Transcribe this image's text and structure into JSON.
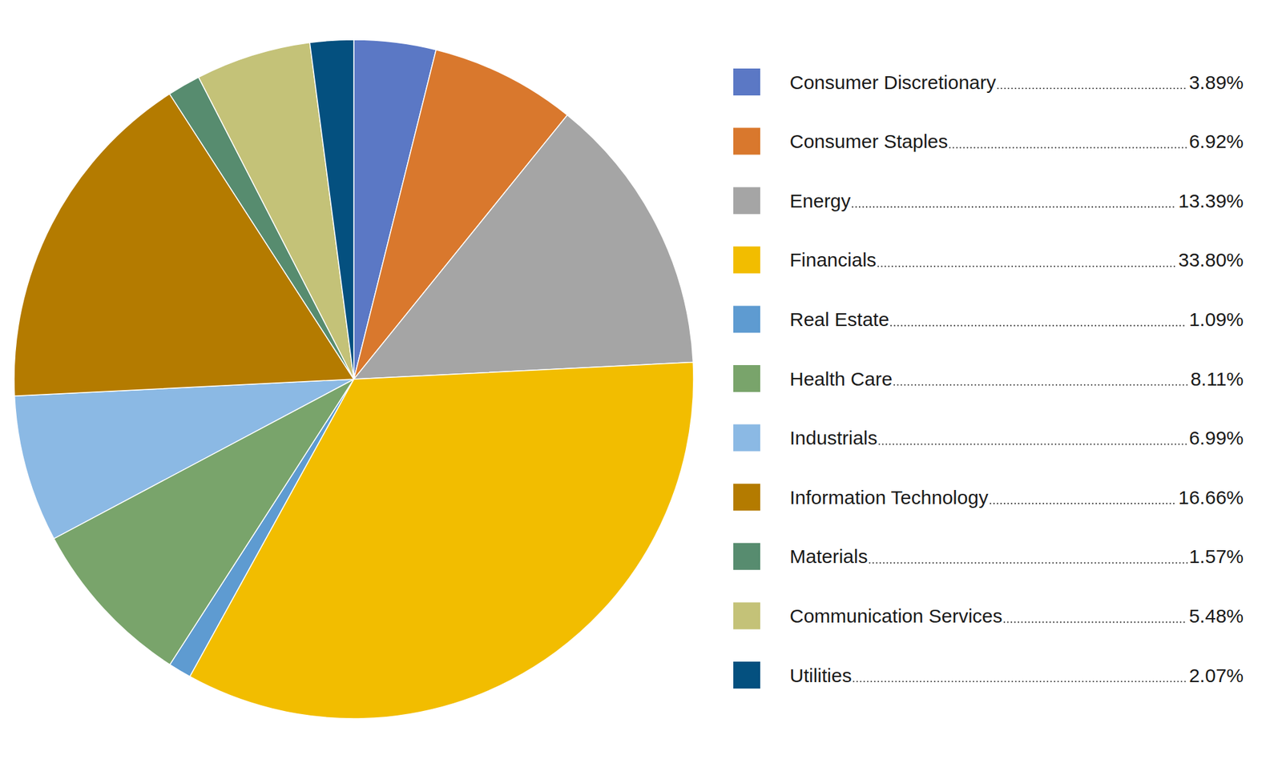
{
  "chart_data": {
    "type": "pie",
    "categories": [
      "Consumer Discretionary",
      "Consumer Staples",
      "Energy",
      "Financials",
      "Real Estate",
      "Health Care",
      "Industrials",
      "Information Technology",
      "Materials",
      "Communication Services",
      "Utilities"
    ],
    "values": [
      3.89,
      6.92,
      13.39,
      33.8,
      1.09,
      8.11,
      6.99,
      16.66,
      1.57,
      5.48,
      2.07
    ],
    "value_labels": [
      "3.89%",
      "6.92%",
      "13.39%",
      "33.80%",
      "1.09%",
      "8.11%",
      "6.99%",
      "16.66%",
      "1.57%",
      "5.48%",
      "2.07%"
    ],
    "colors": [
      "#5b78c5",
      "#d9782d",
      "#a5a5a5",
      "#f2bd00",
      "#5e9bd1",
      "#79a46b",
      "#8bb9e4",
      "#b47b00",
      "#578c6f",
      "#c4c278",
      "#04507f"
    ],
    "legend": "right"
  }
}
